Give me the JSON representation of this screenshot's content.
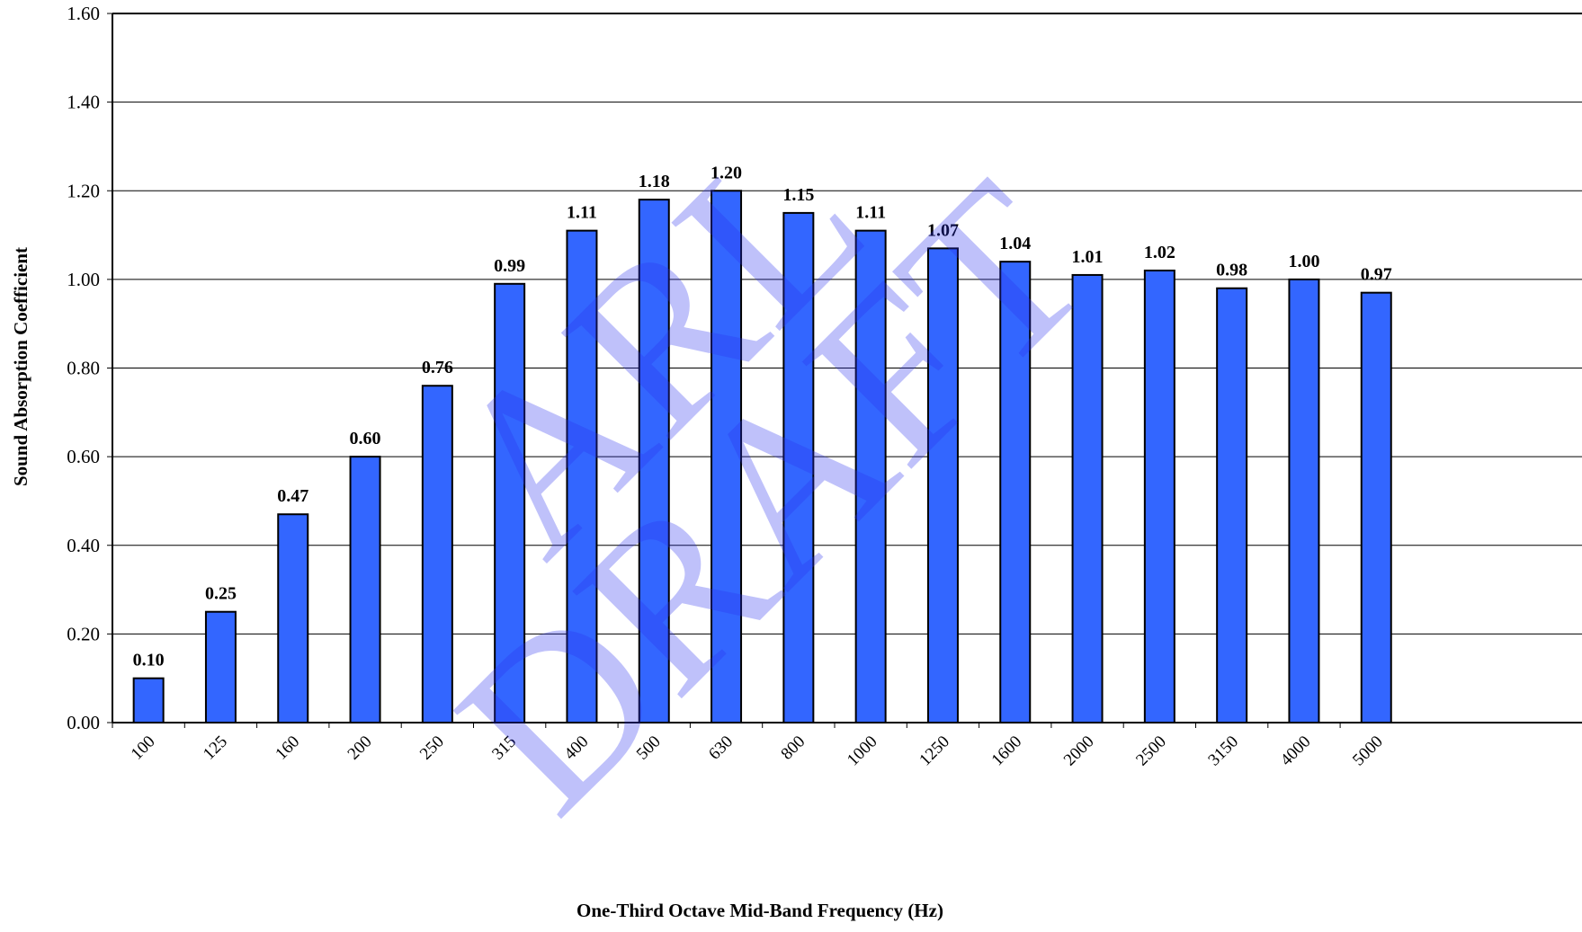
{
  "chart_data": {
    "type": "bar",
    "title": "",
    "xlabel": "One-Third Octave Mid-Band Frequency (Hz)",
    "ylabel": "Sound Absorption Coefficient",
    "categories": [
      "100",
      "125",
      "160",
      "200",
      "250",
      "315",
      "400",
      "500",
      "630",
      "800",
      "1000",
      "1250",
      "1600",
      "2000",
      "2500",
      "3150",
      "4000",
      "5000"
    ],
    "values": [
      0.1,
      0.25,
      0.47,
      0.6,
      0.76,
      0.99,
      1.11,
      1.18,
      1.2,
      1.15,
      1.11,
      1.07,
      1.04,
      1.01,
      1.02,
      0.98,
      1.0,
      0.97
    ],
    "data_labels": [
      "0.10",
      "0.25",
      "0.47",
      "0.60",
      "0.76",
      "0.99",
      "1.11",
      "1.18",
      "1.20",
      "1.15",
      "1.11",
      "1.07",
      "1.04",
      "1.01",
      "1.02",
      "0.98",
      "1.00",
      "0.97"
    ],
    "y_ticks": [
      "0.00",
      "0.20",
      "0.40",
      "0.60",
      "0.80",
      "1.00",
      "1.20",
      "1.40",
      "1.60"
    ],
    "ylim": [
      0,
      1.6
    ],
    "grid": "horizontal",
    "legend": "none",
    "bar_color": "#3366ff",
    "bar_edge_color": "#000000"
  },
  "watermark": {
    "line1": "ARL",
    "line2": "DRAFT",
    "color": "#2a33ee"
  }
}
